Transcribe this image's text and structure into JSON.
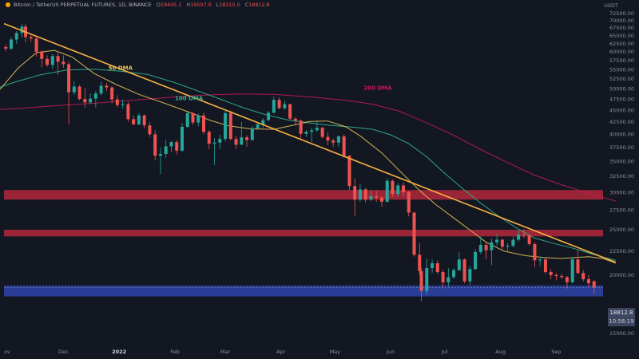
{
  "header": {
    "symbol": "Bitcoin / TetherUS PERPETUAL FUTURES, 1D, BINANCE",
    "open_label": "O",
    "open": "19405.1",
    "high_label": "H",
    "high": "19507.0",
    "low_label": "L",
    "low": "18215.0",
    "close_label": "C",
    "close": "18812.8"
  },
  "axis": {
    "currency": "USDT",
    "price_ticks": [
      "72500.00",
      "70000.00",
      "67500.00",
      "65000.00",
      "62500.00",
      "60000.00",
      "57500.00",
      "55000.00",
      "52500.00",
      "50000.00",
      "47500.00",
      "45000.00",
      "42500.00",
      "40000.00",
      "37500.00",
      "35000.00",
      "32500.00",
      "30000.00",
      "27500.00",
      "25000.00",
      "22500.00",
      "20000.00",
      "15000.00"
    ],
    "time_ticks": [
      "ov",
      "Dec",
      "2022",
      "Feb",
      "Mar",
      "Apr",
      "May",
      "Jun",
      "Jul",
      "Aug",
      "Sep"
    ]
  },
  "last_price": {
    "price": "18812.8",
    "countdown": "10:56:19"
  },
  "indicators": [
    {
      "label": "50 DMA",
      "color": "#e8c55a"
    },
    {
      "label": "100 DMA",
      "color": "#2fb88f"
    },
    {
      "label": "200 DMA",
      "color": "#c2185b"
    }
  ],
  "colors": {
    "background": "#131722",
    "up_candle": "#26a69a",
    "down_candle": "#ef5350",
    "trendline": "#f5b041",
    "resistance_zone": "#b2283a",
    "support_zone": "#2a3f9d"
  },
  "chart_data": {
    "type": "candlestick",
    "title": "Bitcoin / TetherUS PERPETUAL FUTURES, 1D, BINANCE",
    "ylim": [
      13000,
      74500
    ],
    "yscale": "log",
    "xrange": [
      "2021-10-29",
      "2022-09-27"
    ],
    "candles_ohlc": [
      [
        "2021-10-30",
        61500,
        62200,
        60200,
        61000
      ],
      [
        "2021-11-02",
        61000,
        64500,
        60500,
        63800
      ],
      [
        "2021-11-05",
        63800,
        66500,
        62500,
        65900
      ],
      [
        "2021-11-08",
        65900,
        68900,
        64500,
        68000
      ],
      [
        "2021-11-10",
        68000,
        69000,
        62800,
        64600
      ],
      [
        "2021-11-13",
        64600,
        65500,
        63000,
        64100
      ],
      [
        "2021-11-16",
        64100,
        64800,
        58700,
        60100
      ],
      [
        "2021-11-19",
        60100,
        60500,
        55600,
        58000
      ],
      [
        "2021-11-22",
        58000,
        59000,
        55800,
        56300
      ],
      [
        "2021-11-25",
        56300,
        59400,
        55200,
        58800
      ],
      [
        "2021-11-28",
        58800,
        59800,
        53600,
        57200
      ],
      [
        "2021-12-01",
        57200,
        59000,
        55500,
        56500
      ],
      [
        "2021-12-04",
        56500,
        57200,
        42000,
        49200
      ],
      [
        "2021-12-07",
        49200,
        51900,
        48600,
        50600
      ],
      [
        "2021-12-10",
        50600,
        51000,
        47300,
        47600
      ],
      [
        "2021-12-13",
        47600,
        50200,
        45600,
        46800
      ],
      [
        "2021-12-16",
        46800,
        48900,
        46400,
        47700
      ],
      [
        "2021-12-19",
        47700,
        49500,
        45600,
        48900
      ],
      [
        "2021-12-22",
        48900,
        51800,
        48500,
        50800
      ],
      [
        "2021-12-25",
        50800,
        51500,
        49500,
        50400
      ],
      [
        "2021-12-28",
        50400,
        50700,
        46600,
        47500
      ],
      [
        "2021-12-31",
        47500,
        48500,
        45700,
        46200
      ],
      [
        "2022-01-03",
        46200,
        47500,
        45400,
        46400
      ],
      [
        "2022-01-06",
        46400,
        47000,
        42500,
        43100
      ],
      [
        "2022-01-09",
        43100,
        43900,
        41900,
        42000
      ],
      [
        "2022-01-12",
        42000,
        44400,
        41800,
        43900
      ],
      [
        "2022-01-15",
        43900,
        44100,
        41200,
        41800
      ],
      [
        "2022-01-18",
        41800,
        42500,
        39500,
        40000
      ],
      [
        "2022-01-21",
        40000,
        40800,
        35200,
        36000
      ],
      [
        "2022-01-24",
        36000,
        37500,
        32900,
        36300
      ],
      [
        "2022-01-27",
        36300,
        38900,
        35600,
        37700
      ],
      [
        "2022-01-30",
        37700,
        38700,
        36600,
        38500
      ],
      [
        "2022-02-02",
        38500,
        38900,
        36200,
        36900
      ],
      [
        "2022-02-05",
        36900,
        42300,
        36700,
        41500
      ],
      [
        "2022-02-08",
        41500,
        45000,
        41200,
        44400
      ],
      [
        "2022-02-11",
        44400,
        44700,
        41900,
        42400
      ],
      [
        "2022-02-14",
        42400,
        44300,
        41600,
        43900
      ],
      [
        "2022-02-17",
        43900,
        44500,
        40000,
        40500
      ],
      [
        "2022-02-20",
        40500,
        40800,
        37200,
        38200
      ],
      [
        "2022-02-23",
        38200,
        39300,
        34400,
        38400
      ],
      [
        "2022-02-26",
        38400,
        39900,
        37200,
        39100
      ],
      [
        "2022-03-01",
        39100,
        44900,
        38600,
        44400
      ],
      [
        "2022-03-04",
        44400,
        45000,
        38800,
        39100
      ],
      [
        "2022-03-07",
        39100,
        39700,
        37200,
        38000
      ],
      [
        "2022-03-10",
        38000,
        42500,
        38000,
        39400
      ],
      [
        "2022-03-13",
        39400,
        39800,
        37600,
        38900
      ],
      [
        "2022-03-16",
        38900,
        41700,
        38800,
        41200
      ],
      [
        "2022-03-19",
        41200,
        42400,
        40900,
        42000
      ],
      [
        "2022-03-22",
        42000,
        43300,
        41300,
        42900
      ],
      [
        "2022-03-25",
        42900,
        44900,
        42700,
        44500
      ],
      [
        "2022-03-28",
        44500,
        48200,
        44300,
        47400
      ],
      [
        "2022-03-31",
        47400,
        48000,
        45200,
        45500
      ],
      [
        "2022-04-03",
        45500,
        47200,
        45100,
        46400
      ],
      [
        "2022-04-06",
        46400,
        46500,
        43000,
        43200
      ],
      [
        "2022-04-09",
        43200,
        43500,
        42000,
        42800
      ],
      [
        "2022-04-12",
        42800,
        43000,
        39200,
        40100
      ],
      [
        "2022-04-15",
        40100,
        40800,
        39500,
        40500
      ],
      [
        "2022-04-18",
        40500,
        41300,
        38500,
        40800
      ],
      [
        "2022-04-21",
        40800,
        42900,
        40500,
        41300
      ],
      [
        "2022-04-24",
        41300,
        41500,
        39200,
        39500
      ],
      [
        "2022-04-27",
        39500,
        40400,
        37900,
        38800
      ],
      [
        "2022-04-30",
        38800,
        39200,
        37600,
        38400
      ],
      [
        "2022-05-03",
        38400,
        39800,
        37600,
        39600
      ],
      [
        "2022-05-06",
        39600,
        40000,
        35600,
        36000
      ],
      [
        "2022-05-09",
        36000,
        36100,
        30400,
        31000
      ],
      [
        "2022-05-12",
        31000,
        32200,
        26700,
        29000
      ],
      [
        "2022-05-15",
        29000,
        31300,
        28700,
        30500
      ],
      [
        "2022-05-18",
        30500,
        30700,
        28600,
        29000
      ],
      [
        "2022-05-21",
        29000,
        30400,
        28800,
        29500
      ],
      [
        "2022-05-24",
        29500,
        30300,
        28700,
        29300
      ],
      [
        "2022-05-27",
        29300,
        29500,
        28000,
        28700
      ],
      [
        "2022-05-30",
        28700,
        32200,
        28600,
        31800
      ],
      [
        "2022-06-02",
        31800,
        32000,
        29400,
        29800
      ],
      [
        "2022-06-05",
        29800,
        31500,
        29400,
        31100
      ],
      [
        "2022-06-08",
        31100,
        31600,
        29500,
        30100
      ],
      [
        "2022-06-11",
        30100,
        30300,
        26700,
        27200
      ],
      [
        "2022-06-14",
        27200,
        27300,
        21900,
        22100
      ],
      [
        "2022-06-17",
        22100,
        23400,
        20000,
        20400
      ],
      [
        "2022-06-18",
        20400,
        20700,
        17600,
        18500
      ],
      [
        "2022-06-21",
        18500,
        21700,
        18200,
        20700
      ],
      [
        "2022-06-24",
        20700,
        21600,
        20200,
        21200
      ],
      [
        "2022-06-27",
        21200,
        21500,
        20100,
        20300
      ],
      [
        "2022-06-30",
        20300,
        20500,
        18700,
        19300
      ],
      [
        "2022-07-03",
        19300,
        20700,
        18900,
        19800
      ],
      [
        "2022-07-06",
        19800,
        20700,
        19600,
        20500
      ],
      [
        "2022-07-09",
        20500,
        22400,
        20400,
        21600
      ],
      [
        "2022-07-12",
        21600,
        21700,
        19200,
        19400
      ],
      [
        "2022-07-15",
        19400,
        20900,
        19000,
        20600
      ],
      [
        "2022-07-18",
        20600,
        22700,
        20500,
        22400
      ],
      [
        "2022-07-21",
        22400,
        24200,
        22200,
        23200
      ],
      [
        "2022-07-24",
        23200,
        23600,
        21600,
        22600
      ],
      [
        "2022-07-27",
        22600,
        23900,
        21000,
        23500
      ],
      [
        "2022-07-30",
        23500,
        24500,
        23100,
        23800
      ],
      [
        "2022-08-02",
        23800,
        23900,
        22700,
        23000
      ],
      [
        "2022-08-05",
        23000,
        23400,
        22400,
        23100
      ],
      [
        "2022-08-08",
        23100,
        24200,
        22900,
        23800
      ],
      [
        "2022-08-11",
        23800,
        24900,
        23600,
        24400
      ],
      [
        "2022-08-14",
        24400,
        25100,
        24000,
        24300
      ],
      [
        "2022-08-17",
        24300,
        24400,
        23100,
        23300
      ],
      [
        "2022-08-20",
        23300,
        23500,
        20800,
        21500
      ],
      [
        "2022-08-23",
        21500,
        21900,
        20900,
        21600
      ],
      [
        "2022-08-26",
        21600,
        21800,
        20100,
        20300
      ],
      [
        "2022-08-29",
        20300,
        20600,
        19600,
        20000
      ],
      [
        "2022-09-01",
        20000,
        20200,
        19500,
        19900
      ],
      [
        "2022-09-04",
        19900,
        20100,
        19600,
        19800
      ],
      [
        "2022-09-07",
        19800,
        19900,
        18700,
        19300
      ],
      [
        "2022-09-10",
        19300,
        21800,
        19200,
        21600
      ],
      [
        "2022-09-13",
        21600,
        22700,
        20100,
        20200
      ],
      [
        "2022-09-16",
        20200,
        20500,
        19400,
        19600
      ],
      [
        "2022-09-19",
        19600,
        20000,
        18800,
        19200
      ],
      [
        "2022-09-22",
        19405.1,
        19507,
        18215,
        18812.8
      ]
    ],
    "ma50": [
      [
        -10,
        44000
      ],
      [
        -3,
        49500
      ],
      [
        8,
        55500
      ],
      [
        18,
        59800
      ],
      [
        28,
        60500
      ],
      [
        38,
        58500
      ],
      [
        50,
        54000
      ],
      [
        62,
        51200
      ],
      [
        75,
        48700
      ],
      [
        90,
        46500
      ],
      [
        105,
        44300
      ],
      [
        115,
        42800
      ],
      [
        125,
        41700
      ],
      [
        137,
        41100
      ],
      [
        150,
        41000
      ],
      [
        160,
        41800
      ],
      [
        170,
        42600
      ],
      [
        180,
        42700
      ],
      [
        190,
        41500
      ],
      [
        198,
        39700
      ],
      [
        210,
        36500
      ],
      [
        222,
        32800
      ],
      [
        230,
        30600
      ],
      [
        240,
        28300
      ],
      [
        250,
        26500
      ],
      [
        260,
        24800
      ],
      [
        268,
        23500
      ],
      [
        278,
        22500
      ],
      [
        290,
        22000
      ],
      [
        300,
        21800
      ],
      [
        310,
        21700
      ],
      [
        318,
        21800
      ],
      [
        325,
        21900
      ],
      [
        333,
        21700
      ],
      [
        340,
        21200
      ]
    ],
    "ma100": [
      [
        -10,
        49200
      ],
      [
        5,
        51600
      ],
      [
        20,
        53600
      ],
      [
        35,
        54900
      ],
      [
        50,
        55100
      ],
      [
        65,
        54600
      ],
      [
        80,
        53700
      ],
      [
        95,
        51600
      ],
      [
        108,
        49500
      ],
      [
        120,
        47600
      ],
      [
        133,
        45600
      ],
      [
        145,
        44100
      ],
      [
        158,
        42900
      ],
      [
        170,
        42300
      ],
      [
        182,
        41800
      ],
      [
        195,
        41400
      ],
      [
        205,
        41000
      ],
      [
        215,
        39900
      ],
      [
        225,
        38200
      ],
      [
        235,
        35800
      ],
      [
        245,
        33000
      ],
      [
        255,
        30600
      ],
      [
        265,
        28500
      ],
      [
        275,
        26700
      ],
      [
        285,
        25200
      ],
      [
        295,
        24000
      ],
      [
        305,
        23400
      ],
      [
        315,
        22900
      ],
      [
        325,
        22300
      ],
      [
        332,
        21900
      ],
      [
        340,
        21500
      ]
    ],
    "ma200": [
      [
        -10,
        45000
      ],
      [
        10,
        45500
      ],
      [
        30,
        46100
      ],
      [
        50,
        46600
      ],
      [
        70,
        47300
      ],
      [
        90,
        47900
      ],
      [
        110,
        48500
      ],
      [
        130,
        48800
      ],
      [
        150,
        48700
      ],
      [
        170,
        48100
      ],
      [
        190,
        47300
      ],
      [
        205,
        46400
      ],
      [
        220,
        44800
      ],
      [
        235,
        42300
      ],
      [
        250,
        39800
      ],
      [
        265,
        37100
      ],
      [
        280,
        34800
      ],
      [
        295,
        32700
      ],
      [
        310,
        31200
      ],
      [
        325,
        29900
      ],
      [
        340,
        28800
      ]
    ],
    "trendline": [
      [
        0,
        69000
      ],
      [
        340,
        21300
      ]
    ],
    "resistance_zone": [
      [
        29000,
        30400
      ],
      [
        24200,
        25000
      ]
    ],
    "support_zone": [
      18000,
      19000
    ],
    "last_price": 18812.8
  }
}
